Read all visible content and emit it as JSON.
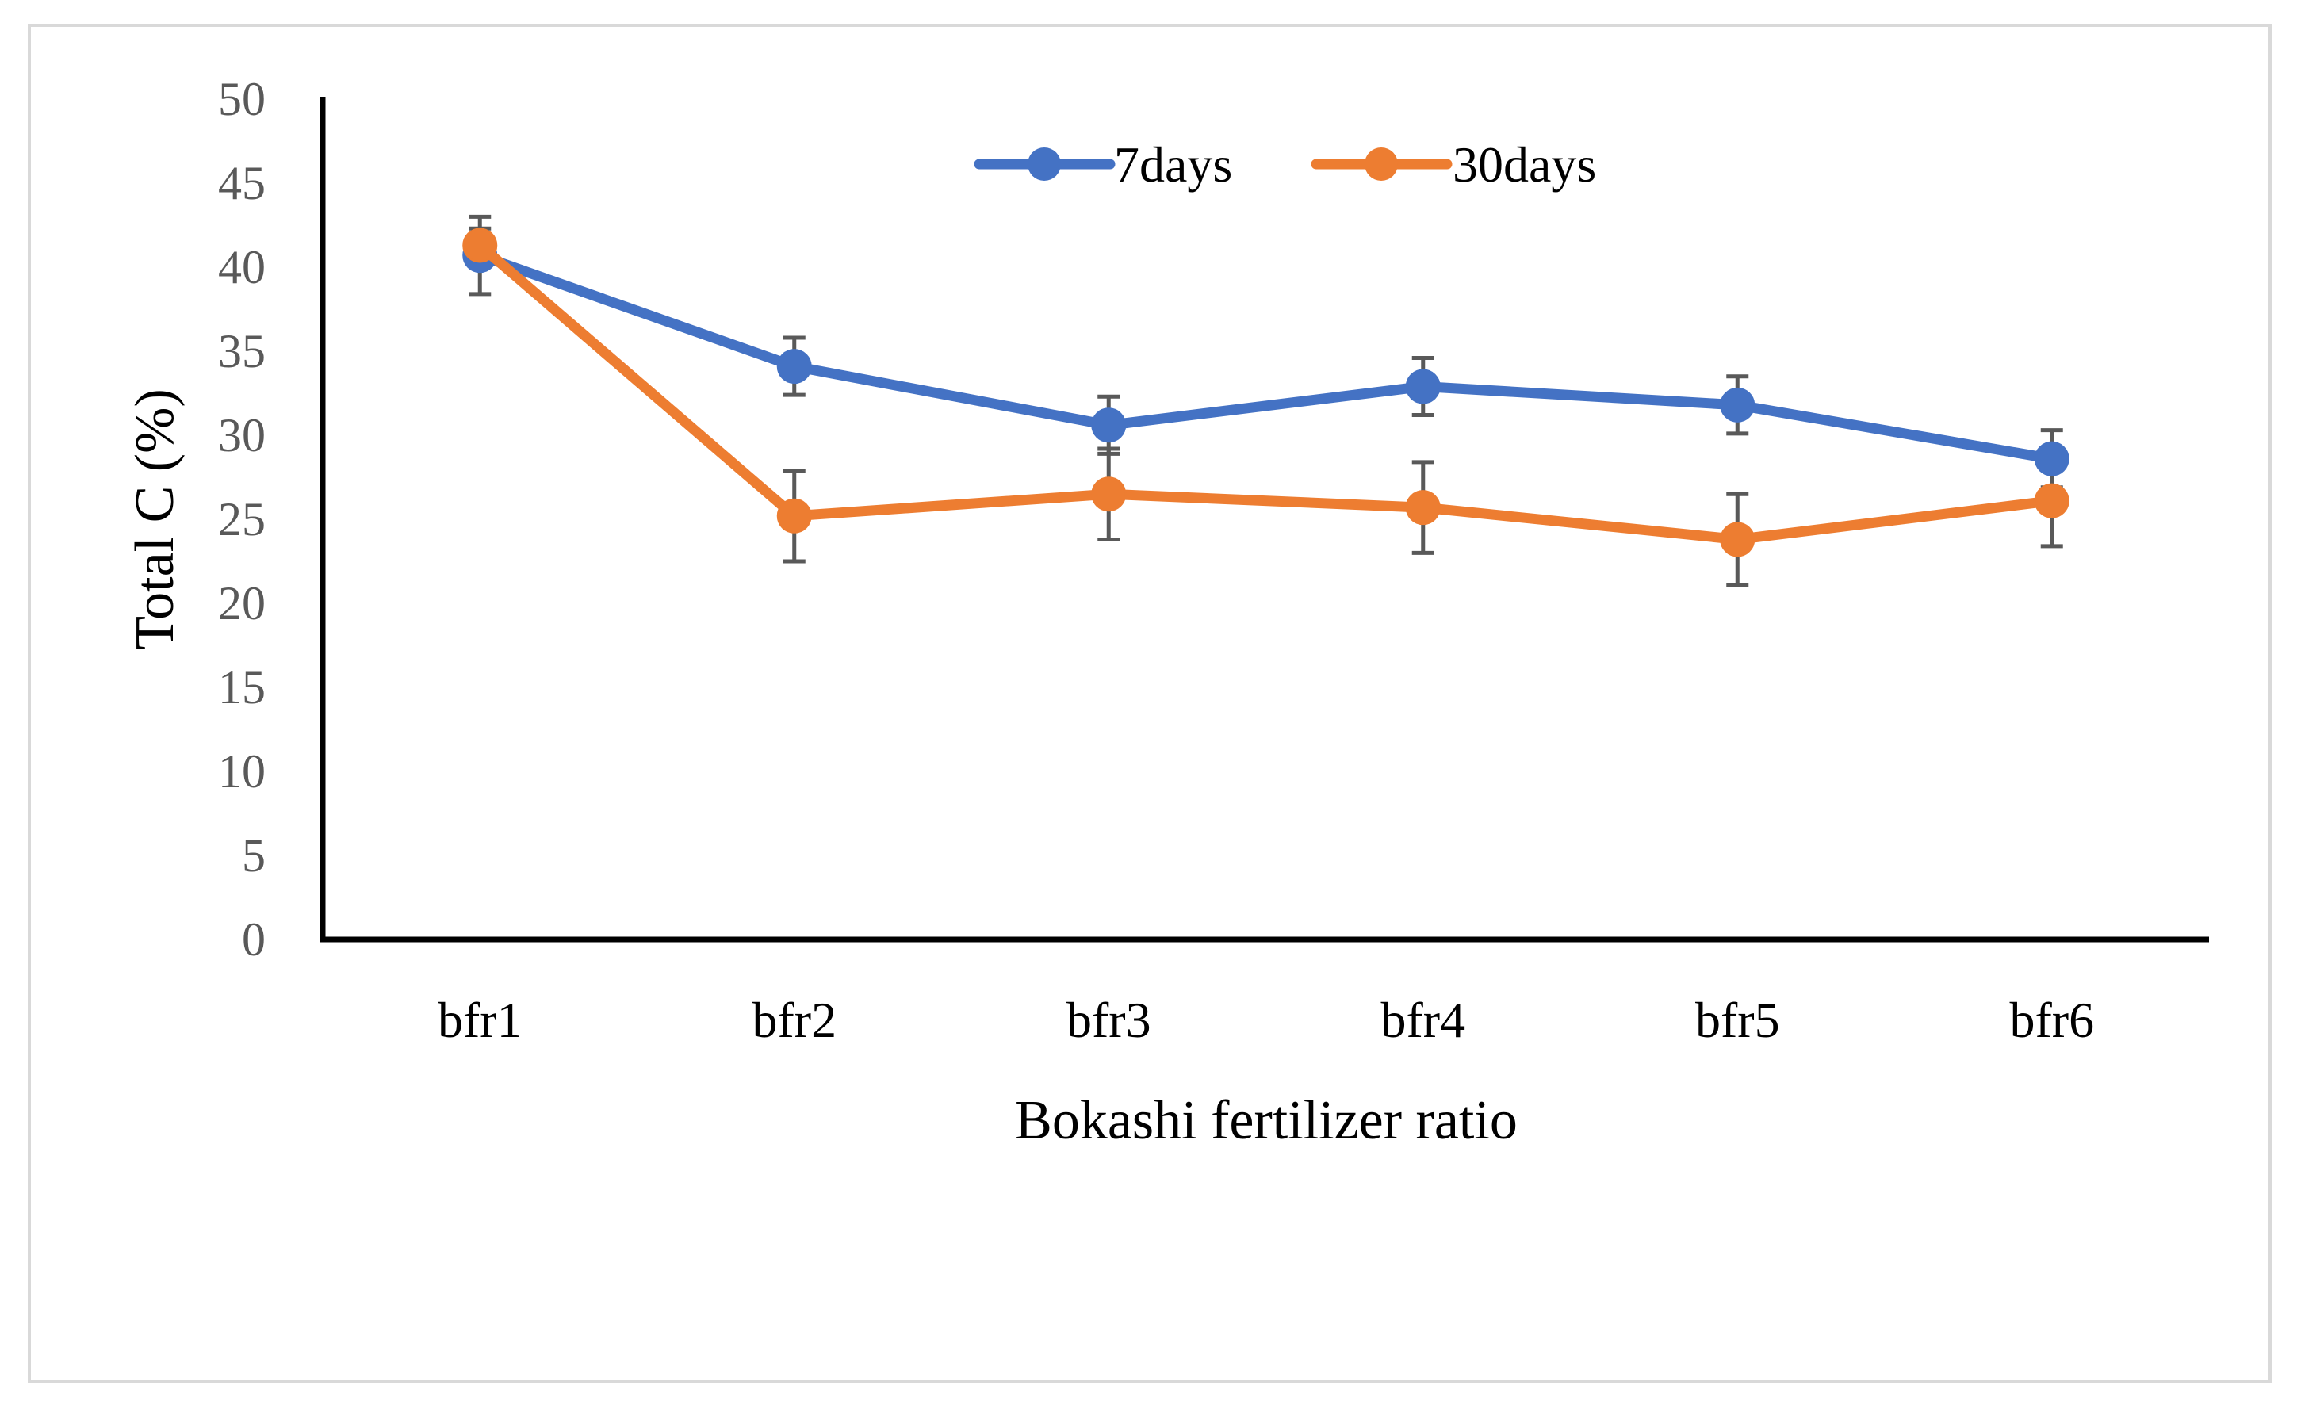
{
  "chart_data": {
    "type": "line",
    "title": "",
    "xlabel": "Bokashi fertilizer ratio",
    "ylabel": "Total C (%)",
    "categories": [
      "bfr1",
      "bfr2",
      "bfr3",
      "bfr4",
      "bfr5",
      "bfr6"
    ],
    "ylim": [
      0,
      50
    ],
    "yticks": [
      0,
      5,
      10,
      15,
      20,
      25,
      30,
      35,
      40,
      45,
      50
    ],
    "grid": false,
    "legend_position": "top-center",
    "series": [
      {
        "name": "7days",
        "color": "#4472c4",
        "values": [
          40.7,
          34.1,
          30.6,
          32.9,
          31.8,
          28.6
        ],
        "errors": [
          2.3,
          1.7,
          1.7,
          1.7,
          1.7,
          1.7
        ]
      },
      {
        "name": "30days",
        "color": "#ed7d31",
        "values": [
          41.3,
          25.2,
          26.5,
          25.7,
          23.8,
          26.1
        ],
        "errors": [
          1.0,
          2.7,
          2.7,
          2.7,
          2.7,
          2.7
        ]
      }
    ],
    "error_bar_color": "#595959"
  }
}
